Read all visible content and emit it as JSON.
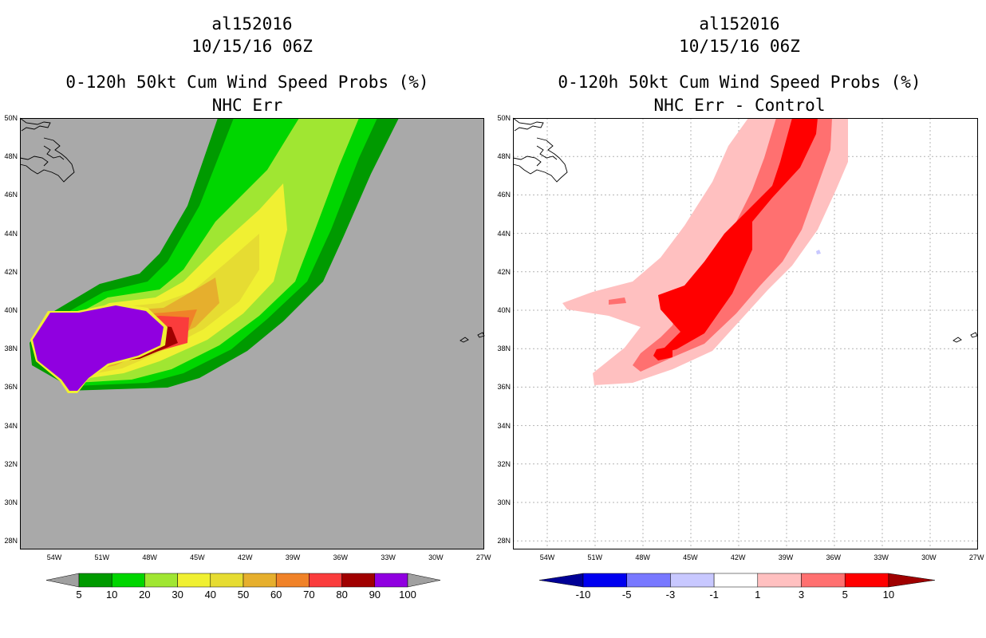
{
  "left": {
    "title_lines": [
      "al152016",
      "10/15/16 06Z",
      "0-120h 50kt Cum Wind Speed Probs (%)",
      "NHC Err"
    ],
    "colorbar_labels": [
      "5",
      "10",
      "20",
      "30",
      "40",
      "50",
      "60",
      "70",
      "80",
      "90",
      "100"
    ],
    "colors": {
      "background": "#a9a9a9",
      "c5": "#009a00",
      "c10": "#00d600",
      "c20": "#a0e632",
      "c30": "#f0f032",
      "c40": "#e6dc32",
      "c50": "#e6af2d",
      "c60": "#f08228",
      "c70": "#fa3c3c",
      "c80": "#a00000",
      "c90": "#9000e0",
      "c100": "#a0a0a0"
    }
  },
  "right": {
    "title_lines": [
      "al152016",
      "10/15/16 06Z",
      "0-120h 50kt Cum Wind Speed Probs (%)",
      "NHC Err - Control"
    ],
    "colorbar_labels": [
      "-10",
      "-5",
      "-3",
      "-1",
      "1",
      "3",
      "5",
      "10"
    ],
    "colors": {
      "background": "#ffffff",
      "n10": "#000096",
      "n5": "#0000f0",
      "n3": "#7878ff",
      "n1": "#c8c8ff",
      "zero": "#ffffff",
      "p1": "#ffc0c0",
      "p3": "#ff7070",
      "p5": "#ff0000",
      "p10": "#a00000"
    }
  },
  "axes": {
    "lat_labels": [
      "50N",
      "48N",
      "46N",
      "44N",
      "42N",
      "40N",
      "38N",
      "36N",
      "34N",
      "32N",
      "30N",
      "28N"
    ],
    "lon_labels": [
      "54W",
      "51W",
      "48W",
      "45W",
      "42W",
      "39W",
      "36W",
      "33W",
      "30W",
      "27W"
    ]
  }
}
